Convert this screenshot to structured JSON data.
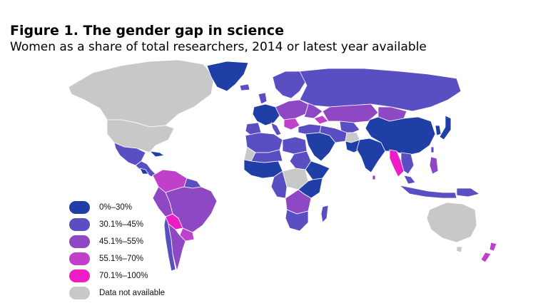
{
  "figure": {
    "title": "Figure 1.  The gender gap in science",
    "subtitle": "Women as a share of total researchers, 2014 or latest year available"
  },
  "colors": {
    "band_0_30": "#1f3fa6",
    "band_30_45": "#5a4ec3",
    "band_45_55": "#8f48c4",
    "band_55_70": "#c03fcb",
    "band_70_100": "#ee1cc6",
    "no_data": "#c8c8c8",
    "border": "#ffffff"
  },
  "legend": {
    "items": [
      {
        "label": "0%–30%",
        "color": "#1f3fa6"
      },
      {
        "label": "30.1%–45%",
        "color": "#5a4ec3"
      },
      {
        "label": "45.1%–55%",
        "color": "#8f48c4"
      },
      {
        "label": "55.1%–70%",
        "color": "#c03fcb"
      },
      {
        "label": "70.1%–100%",
        "color": "#ee1cc6"
      },
      {
        "label": "Data not available",
        "color": "#c8c8c8"
      }
    ]
  }
}
